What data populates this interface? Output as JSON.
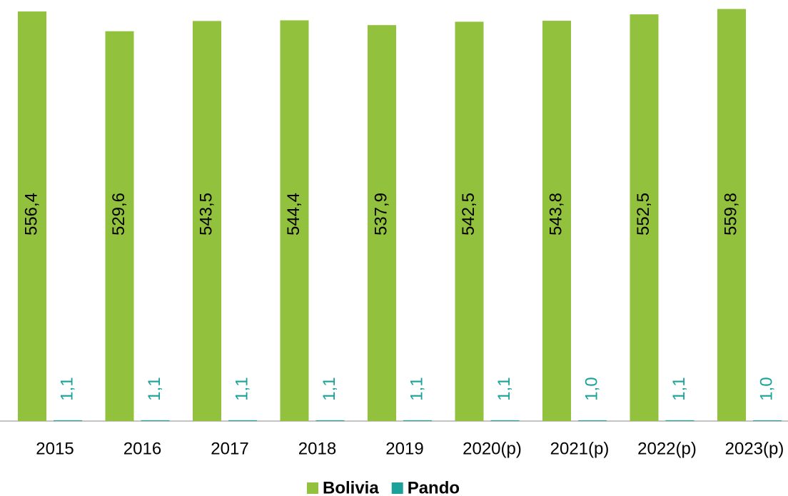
{
  "chart_data": {
    "type": "bar",
    "categories": [
      "2015",
      "2016",
      "2017",
      "2018",
      "2019",
      "2020(p)",
      "2021(p)",
      "2022(p)",
      "2023(p)"
    ],
    "series": [
      {
        "name": "Bolivia",
        "color": "#92c13e",
        "values": [
          556.4,
          529.6,
          543.5,
          544.4,
          537.9,
          542.5,
          543.8,
          552.5,
          559.8
        ],
        "value_labels": [
          "556,4",
          "529,6",
          "543,5",
          "544,4",
          "537,9",
          "542,5",
          "543,8",
          "552,5",
          "559,8"
        ]
      },
      {
        "name": "Pando",
        "color": "#1aa19a",
        "values": [
          1.1,
          1.1,
          1.1,
          1.1,
          1.1,
          1.1,
          1.0,
          1.1,
          1.0
        ],
        "value_labels": [
          "1,1",
          "1,1",
          "1,1",
          "1,1",
          "1,1",
          "1,1",
          "1,0",
          "1,1",
          "1,0"
        ]
      }
    ],
    "ylim": [
      0,
      572
    ]
  }
}
